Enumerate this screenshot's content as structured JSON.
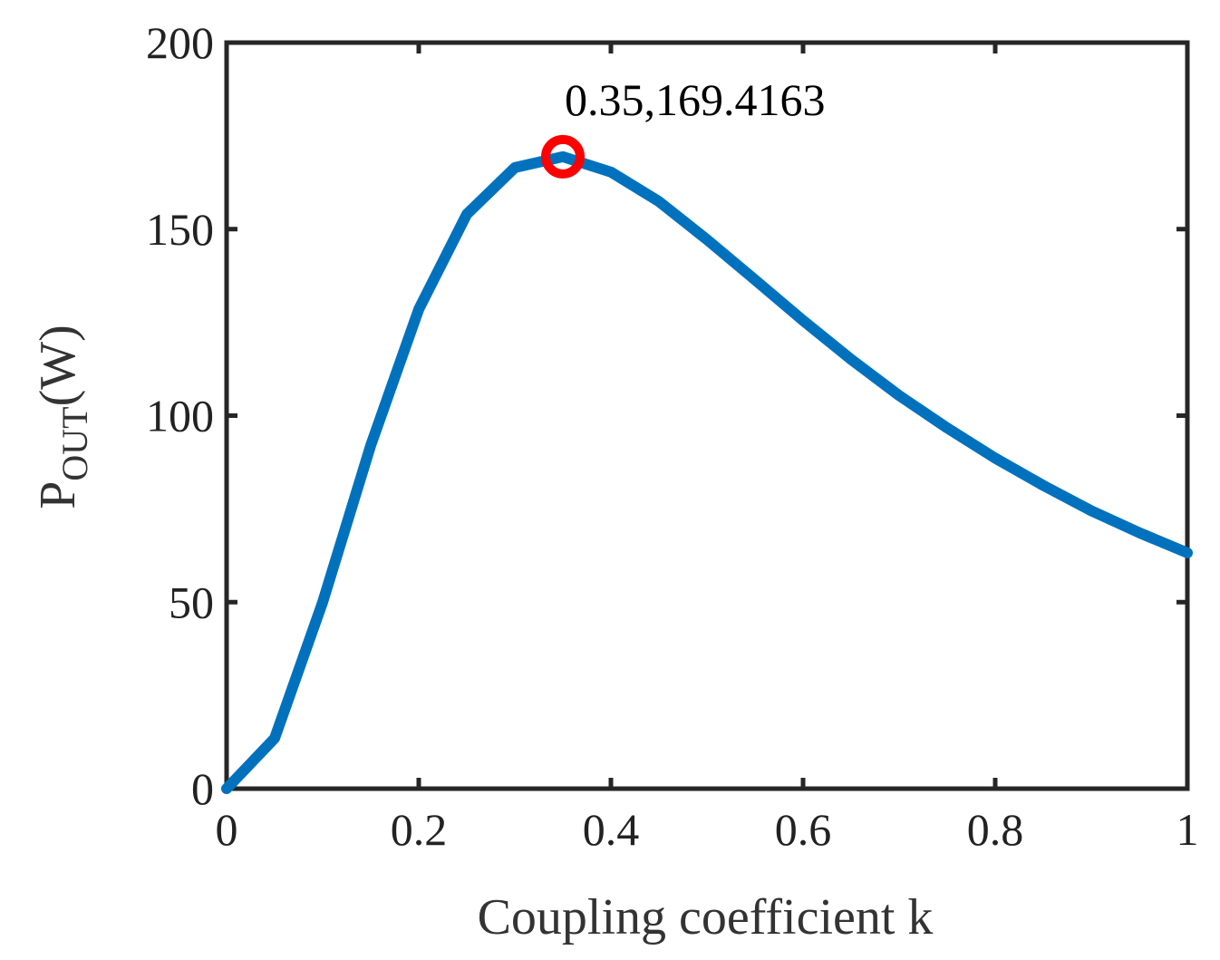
{
  "chart_data": {
    "type": "line",
    "title": "",
    "xlabel": "Coupling coefficient k",
    "ylabel": {
      "main": "P",
      "subscript": "OUT",
      "unit": "(W)"
    },
    "xlim": [
      0,
      1
    ],
    "ylim": [
      0,
      200
    ],
    "x_ticks": [
      0,
      0.2,
      0.4,
      0.6,
      0.8,
      1
    ],
    "x_tick_labels": [
      "0",
      "0.2",
      "0.4",
      "0.6",
      "0.8",
      "1"
    ],
    "y_ticks": [
      0,
      50,
      100,
      150,
      200
    ],
    "y_tick_labels": [
      "0",
      "50",
      "100",
      "150",
      "200"
    ],
    "grid": false,
    "series": [
      {
        "color": "#0072BD",
        "x": [
          0,
          0.05,
          0.1,
          0.15,
          0.2,
          0.25,
          0.3,
          0.35,
          0.4,
          0.45,
          0.5,
          0.55,
          0.6,
          0.65,
          0.7,
          0.75,
          0.8,
          0.85,
          0.9,
          0.95,
          1.0
        ],
        "y": [
          0,
          13.5,
          50,
          92,
          128.5,
          154,
          166.5,
          169.4,
          165.3,
          157.4,
          147.2,
          136.4,
          125.5,
          115.1,
          105.4,
          96.7,
          88.6,
          81.3,
          74.5,
          68.6,
          63.2
        ]
      }
    ],
    "annotations": [
      {
        "x": 0.35,
        "y": 169.4163,
        "label": "0.35,169.4163",
        "marker": "circle",
        "color": "#FF0000"
      }
    ]
  }
}
